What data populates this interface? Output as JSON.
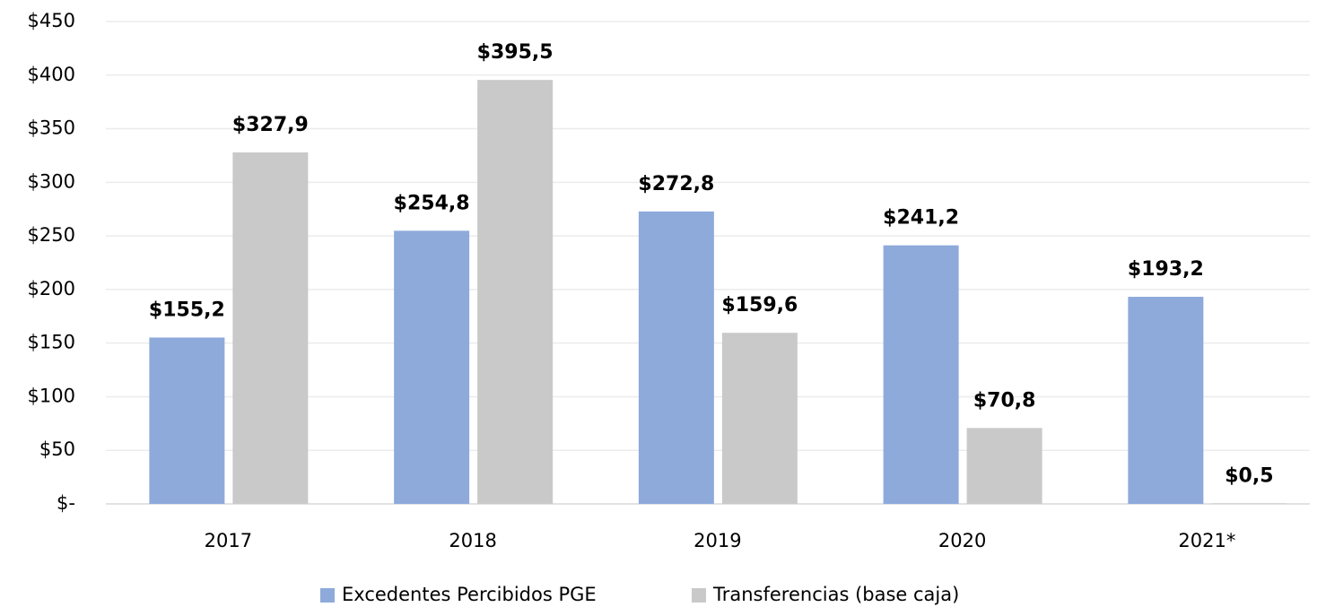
{
  "chart_data": {
    "type": "bar",
    "categories": [
      "2017",
      "2018",
      "2019",
      "2020",
      "2021*"
    ],
    "series": [
      {
        "name": "Excedentes Percibidos PGE",
        "color": "#8eaadb",
        "values": [
          155.2,
          254.8,
          272.8,
          241.2,
          193.2
        ],
        "value_labels": [
          "$155,2",
          "$254,8",
          "$272,8",
          "$241,2",
          "$193,2"
        ]
      },
      {
        "name": "Transferencias (base caja)",
        "color": "#c9c9c9",
        "values": [
          327.9,
          395.5,
          159.6,
          70.8,
          0.5
        ],
        "value_labels": [
          "$327,9",
          "$395,5",
          "$159,6",
          "$70,8",
          "$0,5"
        ]
      }
    ],
    "ylim": [
      0,
      450
    ],
    "yticks": [
      {
        "value": 0,
        "label": "$-"
      },
      {
        "value": 50,
        "label": "$50"
      },
      {
        "value": 100,
        "label": "$100"
      },
      {
        "value": 150,
        "label": "$150"
      },
      {
        "value": 200,
        "label": "$200"
      },
      {
        "value": 250,
        "label": "$250"
      },
      {
        "value": 300,
        "label": "$300"
      },
      {
        "value": 350,
        "label": "$350"
      },
      {
        "value": 400,
        "label": "$400"
      },
      {
        "value": 450,
        "label": "$450"
      }
    ],
    "grid": true,
    "legend": "bottom"
  }
}
